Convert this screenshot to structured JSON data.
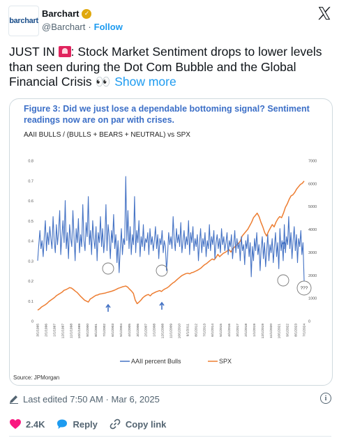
{
  "header": {
    "avatar_text": "barchart",
    "name": "Barchart",
    "handle": "@Barchart",
    "separator": "·",
    "follow_label": "Follow"
  },
  "tweet": {
    "prefix": "JUST IN",
    "body": ": Stock Market Sentiment drops to lower levels than seen during the Dot Com Bubble and the Global Financial Crisis",
    "eyes": "👀",
    "show_more": "Show more"
  },
  "figure": {
    "title": "Figure 3: Did we just lose a dependable bottoming signal? Sentiment readings now are on par with crises.",
    "subtitle": "AAII BULLS / (BULLS + BEARS + NEUTRAL) vs SPX",
    "source": "Source: JPMorgan",
    "annotation": "???"
  },
  "chart_data": {
    "type": "line",
    "x_labels": [
      "3/1/1995",
      "2/1/1996",
      "1/1/1997",
      "12/1/1997",
      "11/1/1998",
      "10/1/1999",
      "9/1/2000",
      "8/1/2001",
      "7/1/2002",
      "6/1/2003",
      "5/1/2004",
      "4/1/2005",
      "3/1/2006",
      "2/1/2007",
      "1/1/2008",
      "12/1/2008",
      "11/1/2009",
      "10/1/2010",
      "9/1/2011",
      "8/1/2012",
      "7/1/2013",
      "6/1/2014",
      "5/1/2015",
      "4/1/2016",
      "3/1/2017",
      "2/1/2018",
      "1/1/2019",
      "12/1/2019",
      "11/1/2020",
      "10/1/2021",
      "9/1/2022",
      "8/1/2023",
      "7/1/2024"
    ],
    "y_left": {
      "min": 0,
      "max": 0.8,
      "ticks": [
        "0",
        "0.1",
        "0.2",
        "0.3",
        "0.4",
        "0.5",
        "0.6",
        "0.7",
        "0.8"
      ]
    },
    "y_right": {
      "min": 0,
      "max": 7000,
      "ticks": [
        "0",
        "1000",
        "2000",
        "3000",
        "4000",
        "5000",
        "6000",
        "7000"
      ]
    },
    "series": [
      {
        "name": "AAII percent Bulls",
        "color": "#4472c4",
        "axis": "left",
        "values": [
          0.3,
          0.38,
          0.45,
          0.36,
          0.4,
          0.32,
          0.42,
          0.5,
          0.35,
          0.44,
          0.38,
          0.47,
          0.41,
          0.36,
          0.52,
          0.4,
          0.34,
          0.48,
          0.38,
          0.45,
          0.55,
          0.33,
          0.42,
          0.5,
          0.39,
          0.6,
          0.36,
          0.44,
          0.31,
          0.48,
          0.41,
          0.37,
          0.55,
          0.42,
          0.3,
          0.46,
          0.39,
          0.51,
          0.34,
          0.43,
          0.37,
          0.58,
          0.4,
          0.35,
          0.49,
          0.42,
          0.62,
          0.38,
          0.45,
          0.33,
          0.5,
          0.41,
          0.36,
          0.47,
          0.3,
          0.44,
          0.39,
          0.52,
          0.37,
          0.46,
          0.34,
          0.41,
          0.58,
          0.35,
          0.48,
          0.42,
          0.31,
          0.45,
          0.39,
          0.53,
          0.36,
          0.43,
          0.29,
          0.4,
          0.24,
          0.36,
          0.46,
          0.33,
          0.41,
          0.38,
          0.72,
          0.4,
          0.55,
          0.36,
          0.47,
          0.33,
          0.43,
          0.38,
          0.62,
          0.34,
          0.45,
          0.39,
          0.5,
          0.32,
          0.42,
          0.37,
          0.48,
          0.35,
          0.41,
          0.39,
          0.44,
          0.33,
          0.46,
          0.38,
          0.42,
          0.35,
          0.4,
          0.47,
          0.36,
          0.43,
          0.31,
          0.41,
          0.38,
          0.45,
          0.34,
          0.4,
          0.37,
          0.25,
          0.33,
          0.44,
          0.38,
          0.42,
          0.36,
          0.52,
          0.41,
          0.35,
          0.46,
          0.39,
          0.43,
          0.37,
          0.49,
          0.34,
          0.4,
          0.45,
          0.36,
          0.42,
          0.38,
          0.5,
          0.33,
          0.44,
          0.39,
          0.47,
          0.35,
          0.41,
          0.37,
          0.43,
          0.3,
          0.39,
          0.46,
          0.34,
          0.41,
          0.37,
          0.44,
          0.32,
          0.4,
          0.36,
          0.48,
          0.35,
          0.42,
          0.38,
          0.45,
          0.31,
          0.39,
          0.43,
          0.36,
          0.41,
          0.34,
          0.46,
          0.38,
          0.42,
          0.35,
          0.39,
          0.44,
          0.33,
          0.4,
          0.37,
          0.43,
          0.31,
          0.38,
          0.45,
          0.34,
          0.41,
          0.36,
          0.39,
          0.3,
          0.42,
          0.35,
          0.38,
          0.28,
          0.4,
          0.36,
          0.43,
          0.32,
          0.39,
          0.22,
          0.37,
          0.3,
          0.41,
          0.35,
          0.44,
          0.33,
          0.38,
          0.25,
          0.36,
          0.42,
          0.31,
          0.39,
          0.27,
          0.35,
          0.43,
          0.3,
          0.38,
          0.34,
          0.41,
          0.29,
          0.37,
          0.44,
          0.32,
          0.39,
          0.26,
          0.46,
          0.35,
          0.4,
          0.3,
          0.48,
          0.34,
          0.42,
          0.38,
          0.52,
          0.36,
          0.44,
          0.31,
          0.4,
          0.47,
          0.35,
          0.43,
          0.29,
          0.41,
          0.37,
          0.45,
          0.33,
          0.39,
          0.2
        ]
      },
      {
        "name": "SPX",
        "color": "#ed7d31",
        "axis": "right",
        "values": [
          470,
          520,
          600,
          650,
          700,
          760,
          840,
          900,
          960,
          1020,
          1100,
          1150,
          1200,
          1250,
          1330,
          1360,
          1400,
          1450,
          1430,
          1370,
          1300,
          1240,
          1150,
          1060,
          980,
          900,
          860,
          820,
          950,
          1000,
          1060,
          1110,
          1130,
          1170,
          1180,
          1200,
          1210,
          1240,
          1260,
          1280,
          1310,
          1340,
          1380,
          1420,
          1450,
          1480,
          1500,
          1520,
          1470,
          1380,
          1300,
          1200,
          900,
          750,
          820,
          900,
          1000,
          1070,
          1120,
          1150,
          1090,
          1180,
          1220,
          1260,
          1290,
          1320,
          1280,
          1350,
          1400,
          1440,
          1500,
          1580,
          1650,
          1700,
          1780,
          1850,
          1920,
          1980,
          2020,
          2060,
          2080,
          2050,
          2100,
          2120,
          2160,
          2200,
          2250,
          2300,
          2380,
          2450,
          2500,
          2570,
          2640,
          2700,
          2660,
          2760,
          2900,
          2800,
          2880,
          2950,
          2990,
          3050,
          3100,
          3000,
          3150,
          3220,
          3300,
          3380,
          3480,
          3700,
          3800,
          3900,
          4000,
          4150,
          4300,
          4500,
          4600,
          4700,
          4550,
          4300,
          4100,
          3850,
          3700,
          3900,
          4050,
          4200,
          4100,
          4300,
          4450,
          4550,
          4500,
          4700,
          4950,
          5100,
          5300,
          5450,
          5500,
          5600,
          5750,
          5850,
          5950,
          6000,
          6100
        ]
      }
    ],
    "legend": "bottom",
    "grid": false
  },
  "footer": {
    "edited": "Last edited 7:50 AM · Mar 6, 2025"
  },
  "actions": {
    "likes": "2.4K",
    "reply_label": "Reply",
    "copy_label": "Copy link",
    "like_color": "#f91880",
    "reply_color": "#1d9bf0"
  }
}
